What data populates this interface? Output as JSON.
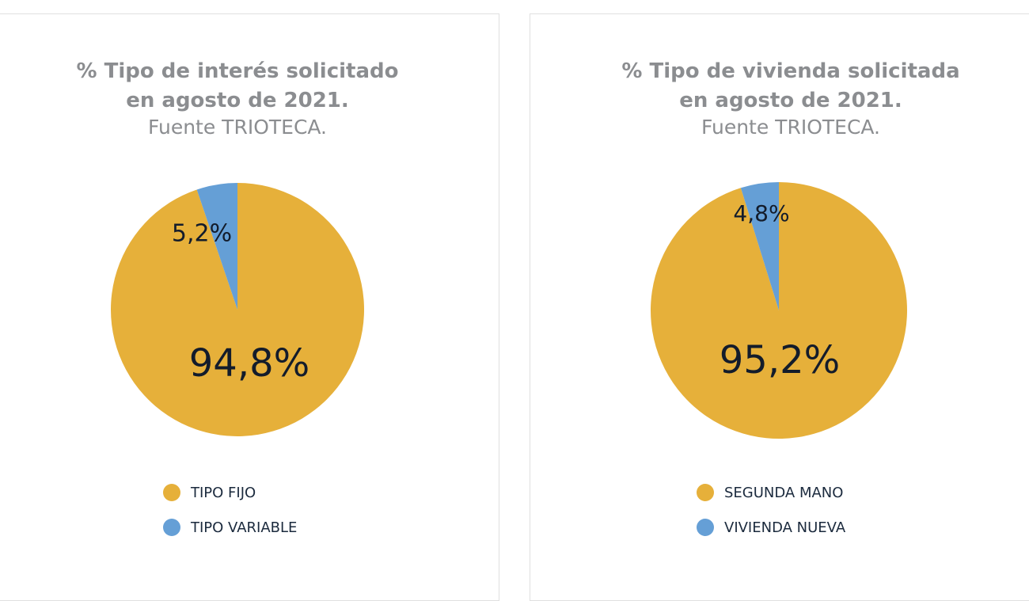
{
  "chart_data": [
    {
      "type": "pie",
      "title": "% Tipo de interés solicitado en agosto de 2021.",
      "title_line1": "% Tipo de interés solicitado",
      "title_line2": "en agosto de 2021.",
      "subtitle": "Fuente TRIOTECA.",
      "slices": [
        {
          "name": "TIPO FIJO",
          "value": 94.8,
          "label": "94,8%",
          "color": "#e6b03a"
        },
        {
          "name": "TIPO VARIABLE",
          "value": 5.2,
          "label": "5,2%",
          "color": "#659fd6"
        }
      ],
      "legend_position": "bottom"
    },
    {
      "type": "pie",
      "title": "% Tipo de vivienda solicitada en agosto de 2021.",
      "title_line1": "% Tipo de vivienda solicitada",
      "title_line2": "en agosto de 2021.",
      "subtitle": "Fuente TRIOTECA.",
      "slices": [
        {
          "name": "SEGUNDA MANO",
          "value": 95.2,
          "label": "95,2%",
          "color": "#e6b03a"
        },
        {
          "name": "VIVIENDA NUEVA",
          "value": 4.8,
          "label": "4,8%",
          "color": "#659fd6"
        }
      ],
      "legend_position": "bottom"
    }
  ]
}
